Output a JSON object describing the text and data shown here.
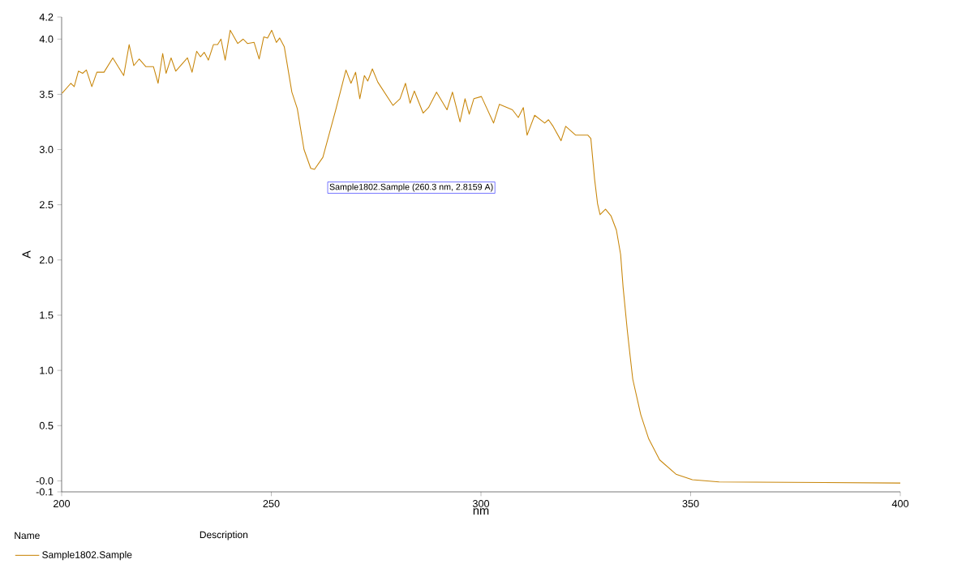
{
  "chart_data": {
    "type": "line",
    "xlabel": "nm",
    "ylabel": "A",
    "xlim": [
      200,
      400
    ],
    "xticks": [
      200,
      250,
      300,
      350,
      400
    ],
    "ylim": [
      -0.1,
      4.2
    ],
    "yticks": [
      {
        "value": -0.1,
        "label": "-0.1"
      },
      {
        "value": 0,
        "label": "-0.0"
      },
      0.5,
      {
        "value": 1,
        "label": "1.0"
      },
      1.5,
      {
        "value": 2,
        "label": "2.0"
      },
      2.5,
      {
        "value": 3,
        "label": "3.0"
      },
      3.5,
      {
        "value": 4,
        "label": "4.0"
      },
      4.2
    ],
    "legend": "bottom left",
    "grid": false,
    "marker": "none",
    "line_style": "solid",
    "annotations": [
      {
        "text": "Sample1802.Sample (260.3 nm, 2.8159 A)",
        "x": 260.3,
        "y": 2.8159
      },
      "Name",
      "Description"
    ],
    "series": [
      {
        "name": "Sample1802.Sample",
        "color": "#c8860a",
        "x": [
          200.1,
          202.2,
          203.0,
          204.0,
          205.0,
          205.9,
          207.2,
          208.4,
          210.1,
          212.2,
          214.8,
          216.1,
          217.2,
          218.5,
          220.1,
          221.9,
          223.0,
          224.1,
          224.9,
          226.1,
          227.2,
          230.0,
          231.1,
          232.2,
          233.1,
          234.0,
          235.0,
          236.2,
          237.2,
          238.0,
          239.0,
          240.2,
          242.0,
          243.3,
          244.3,
          245.9,
          247.1,
          248.2,
          249.1,
          250.1,
          251.2,
          252.0,
          253.1,
          254.9,
          256.2,
          257.8,
          259.4,
          260.3,
          262.3,
          265.3,
          267.8,
          269.0,
          270.1,
          271.1,
          272.2,
          273.0,
          274.1,
          275.4,
          279.0,
          280.7,
          282.0,
          283.1,
          284.1,
          286.2,
          287.5,
          289.4,
          291.9,
          293.2,
          295.0,
          296.2,
          297.2,
          298.3,
          300.1,
          303.0,
          304.4,
          307.5,
          308.9,
          310.1,
          311.0,
          312.8,
          315.2,
          316.1,
          317.2,
          319.1,
          320.2,
          322.6,
          325.5,
          326.2,
          327.1,
          327.8,
          328.4,
          329.7,
          331.0,
          332.3,
          333.3,
          333.9,
          334.9,
          335.6,
          336.2,
          338.1,
          340.0,
          342.6,
          346.5,
          350.4,
          356.8,
          400
        ],
        "values": [
          3.51,
          3.6,
          3.57,
          3.71,
          3.69,
          3.72,
          3.57,
          3.7,
          3.7,
          3.83,
          3.67,
          3.95,
          3.76,
          3.82,
          3.75,
          3.75,
          3.6,
          3.87,
          3.69,
          3.83,
          3.71,
          3.83,
          3.7,
          3.89,
          3.84,
          3.88,
          3.81,
          3.95,
          3.95,
          4.0,
          3.81,
          4.08,
          3.96,
          4.0,
          3.96,
          3.97,
          3.82,
          4.02,
          4.01,
          4.08,
          3.97,
          4.01,
          3.93,
          3.52,
          3.37,
          3.0,
          2.83,
          2.82,
          2.93,
          3.35,
          3.72,
          3.6,
          3.7,
          3.46,
          3.67,
          3.62,
          3.73,
          3.61,
          3.4,
          3.46,
          3.6,
          3.42,
          3.53,
          3.33,
          3.38,
          3.52,
          3.36,
          3.52,
          3.25,
          3.46,
          3.32,
          3.46,
          3.48,
          3.24,
          3.41,
          3.36,
          3.29,
          3.38,
          3.13,
          3.31,
          3.24,
          3.27,
          3.21,
          3.08,
          3.21,
          3.13,
          3.13,
          3.1,
          2.73,
          2.51,
          2.41,
          2.46,
          2.4,
          2.27,
          2.05,
          1.75,
          1.36,
          1.12,
          0.92,
          0.6,
          0.38,
          0.19,
          0.06,
          0.01,
          -0.01,
          -0.02
        ]
      }
    ]
  }
}
